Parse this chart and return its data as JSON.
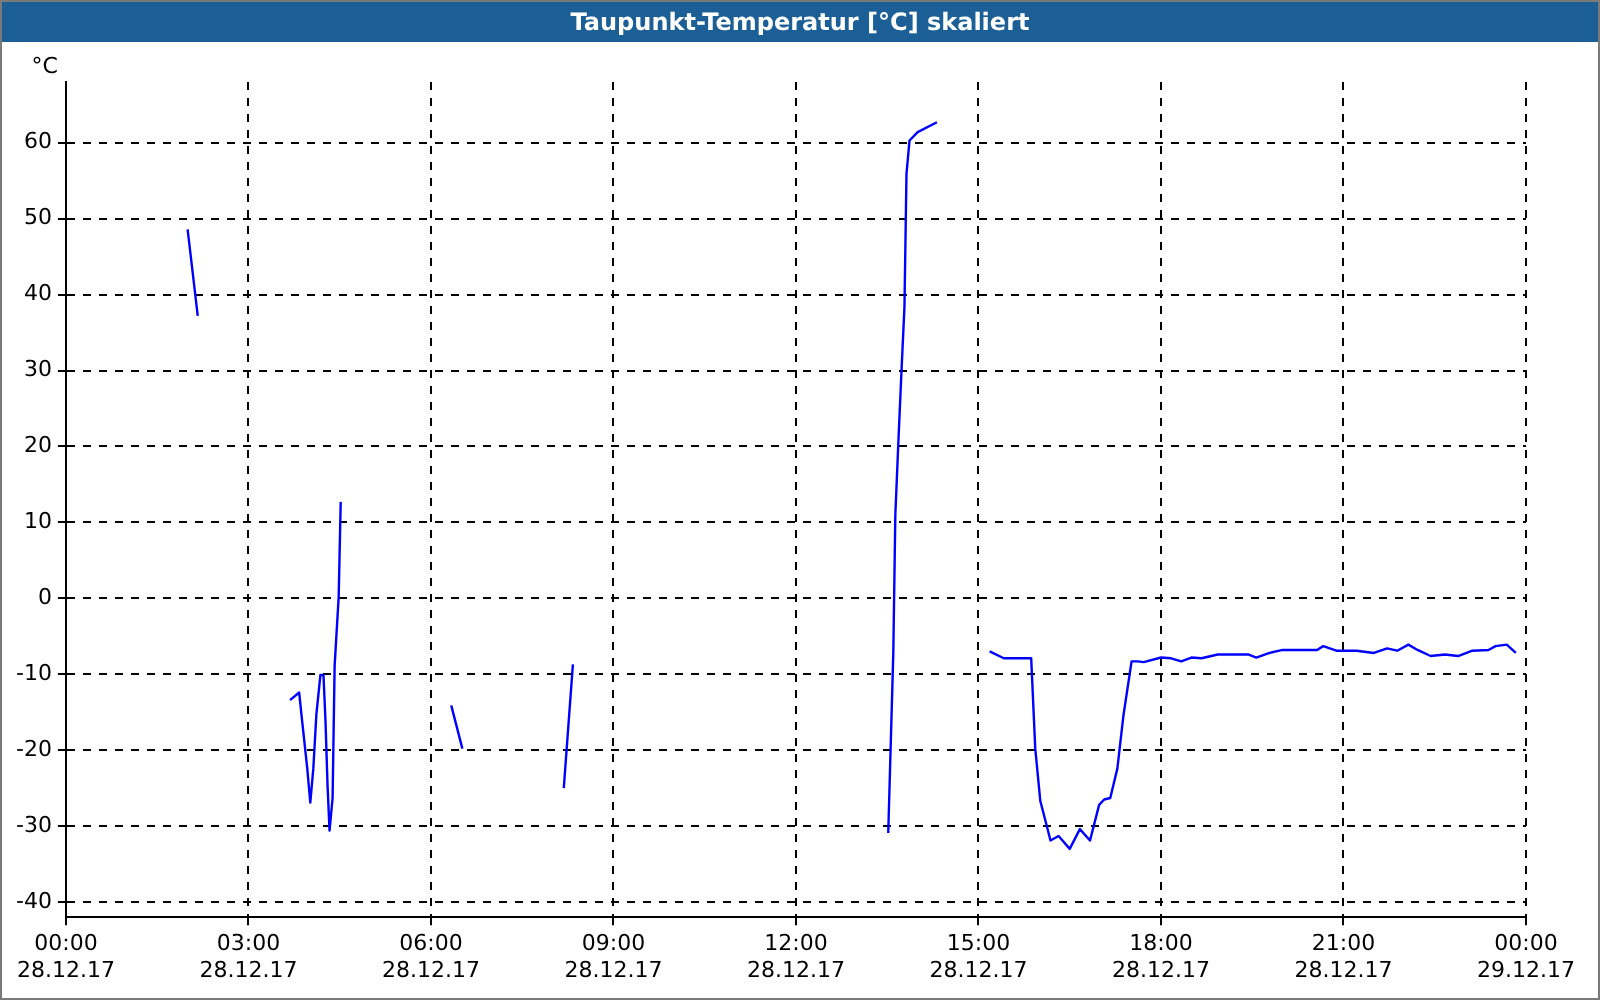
{
  "chart_data": {
    "type": "line",
    "title": "Taupunkt-Temperatur [°C] skaliert",
    "ylabel": "°C",
    "x": [
      "--12-28T02:00",
      "--12-28T02:10",
      "--12-28T03:00",
      "--12-28T03:41",
      "--12-28T03:50",
      "--12-28T03:53",
      "--12-28T03:58",
      "--12-28T04:01",
      "--12-28T04:04",
      "--12-28T04:07",
      "--12-28T04:11",
      "--12-28T04:14",
      "--12-28T04:16",
      "--12-28T04:18",
      "--12-28T04:20",
      "--12-28T04:23",
      "--12-28T04:25",
      "--12-28T04:29",
      "--12-28T04:31",
      "--12-28T05:30",
      "--12-28T06:20",
      "--12-28T06:31",
      "--12-28T07:18",
      "--12-28T08:11",
      "--12-28T08:20",
      "--12-28T11:00",
      "--12-28T13:31",
      "--12-28T13:34",
      "--12-28T13:36",
      "--12-28T13:38",
      "--12-28T13:41",
      "--12-28T13:44",
      "--12-28T13:47",
      "--12-28T13:49",
      "--12-28T13:52",
      "--12-28T14:00",
      "--12-28T14:19",
      "--12-28T14:42",
      "--12-28T15:11",
      "--12-28T15:25",
      "--12-28T15:52",
      "--12-28T15:56",
      "--12-28T16:01",
      "--12-28T16:07",
      "--12-28T16:11",
      "--12-28T16:19",
      "--12-28T16:30",
      "--12-28T16:40",
      "--12-28T16:50",
      "--12-28T16:59",
      "--12-28T17:04",
      "--12-28T17:10",
      "--12-28T17:17",
      "--12-28T17:23",
      "--12-28T17:31",
      "--12-28T17:37",
      "--12-28T17:43",
      "--12-28T18:00",
      "--12-28T18:10",
      "--12-28T18:20",
      "--12-28T18:30",
      "--12-28T18:40",
      "--12-28T18:56",
      "--12-28T19:26",
      "--12-28T19:34",
      "--12-28T19:47",
      "--12-28T20:00",
      "--12-28T20:34",
      "--12-28T20:40",
      "--12-28T20:53",
      "--12-28T21:13",
      "--12-28T21:30",
      "--12-28T21:43",
      "--12-28T21:53",
      "--12-28T22:04",
      "--12-28T22:13",
      "--12-28T22:26",
      "--12-28T22:40",
      "--12-28T22:53",
      "--12-28T23:07",
      "--12-28T23:23",
      "--12-28T23:30",
      "--12-28T23:41",
      "--12-28T23:50"
    ],
    "series": [
      {
        "color": "#0000ff",
        "values": [
          48.6,
          37.2,
          null,
          -13.4,
          -12.4,
          -16.2,
          -22.4,
          -26.9,
          -22.4,
          -15.3,
          -10.1,
          -10.1,
          -16.2,
          -24.6,
          -30.6,
          -26.3,
          -8.9,
          0.2,
          12.7,
          null,
          -14.1,
          -19.8,
          null,
          -25,
          -8.7,
          null,
          -30.9,
          -16.7,
          -7.2,
          11.0,
          20.6,
          29.7,
          38.4,
          55.9,
          60.3,
          61.4,
          62.7,
          null,
          -7.0,
          -7.9,
          -7.9,
          -19.8,
          -26.7,
          -29.8,
          -31.9,
          -31.3,
          -33.0,
          -30.4,
          -31.9,
          -27.2,
          -26.5,
          -26.3,
          -22.4,
          -15.4,
          -8.3,
          -8.3,
          -8.4,
          -7.8,
          -7.9,
          -8.3,
          -7.8,
          -7.9,
          -7.4,
          -7.4,
          -7.8,
          -7.2,
          -6.8,
          -6.8,
          -6.3,
          -6.9,
          -6.9,
          -7.2,
          -6.6,
          -6.9,
          -6.1,
          -6.8,
          -7.6,
          -7.4,
          -7.6,
          -6.9,
          -6.8,
          -6.3,
          -6.1,
          -7.2
        ]
      }
    ],
    "xlim": [
      "--12-28T00:00",
      "--12-29T00:00"
    ],
    "xticks": [
      {
        "value": "--12-28T00:00",
        "label": "00:00\n28.12.17"
      },
      {
        "value": "--12-28T03:00",
        "label": "03:00\n28.12.17"
      },
      {
        "value": "--12-28T06:00",
        "label": "06:00\n28.12.17"
      },
      {
        "value": "--12-28T09:00",
        "label": "09:00\n28.12.17"
      },
      {
        "value": "--12-28T12:00",
        "label": "12:00\n28.12.17"
      },
      {
        "value": "--12-28T15:00",
        "label": "15:00\n28.12.17"
      },
      {
        "value": "--12-28T18:00",
        "label": "18:00\n28.12.17"
      },
      {
        "value": "--12-28T21:00",
        "label": "21:00\n28.12.17"
      },
      {
        "value": "--12-29T00:00",
        "label": "00:00\n29.12.17"
      }
    ],
    "ylim": [
      -42,
      68
    ],
    "yticks": [
      -40,
      -30,
      -20,
      -10,
      0,
      10,
      20,
      30,
      40,
      50,
      60
    ],
    "grid": true,
    "legend": false,
    "marker": "none",
    "line_style": "solid"
  }
}
